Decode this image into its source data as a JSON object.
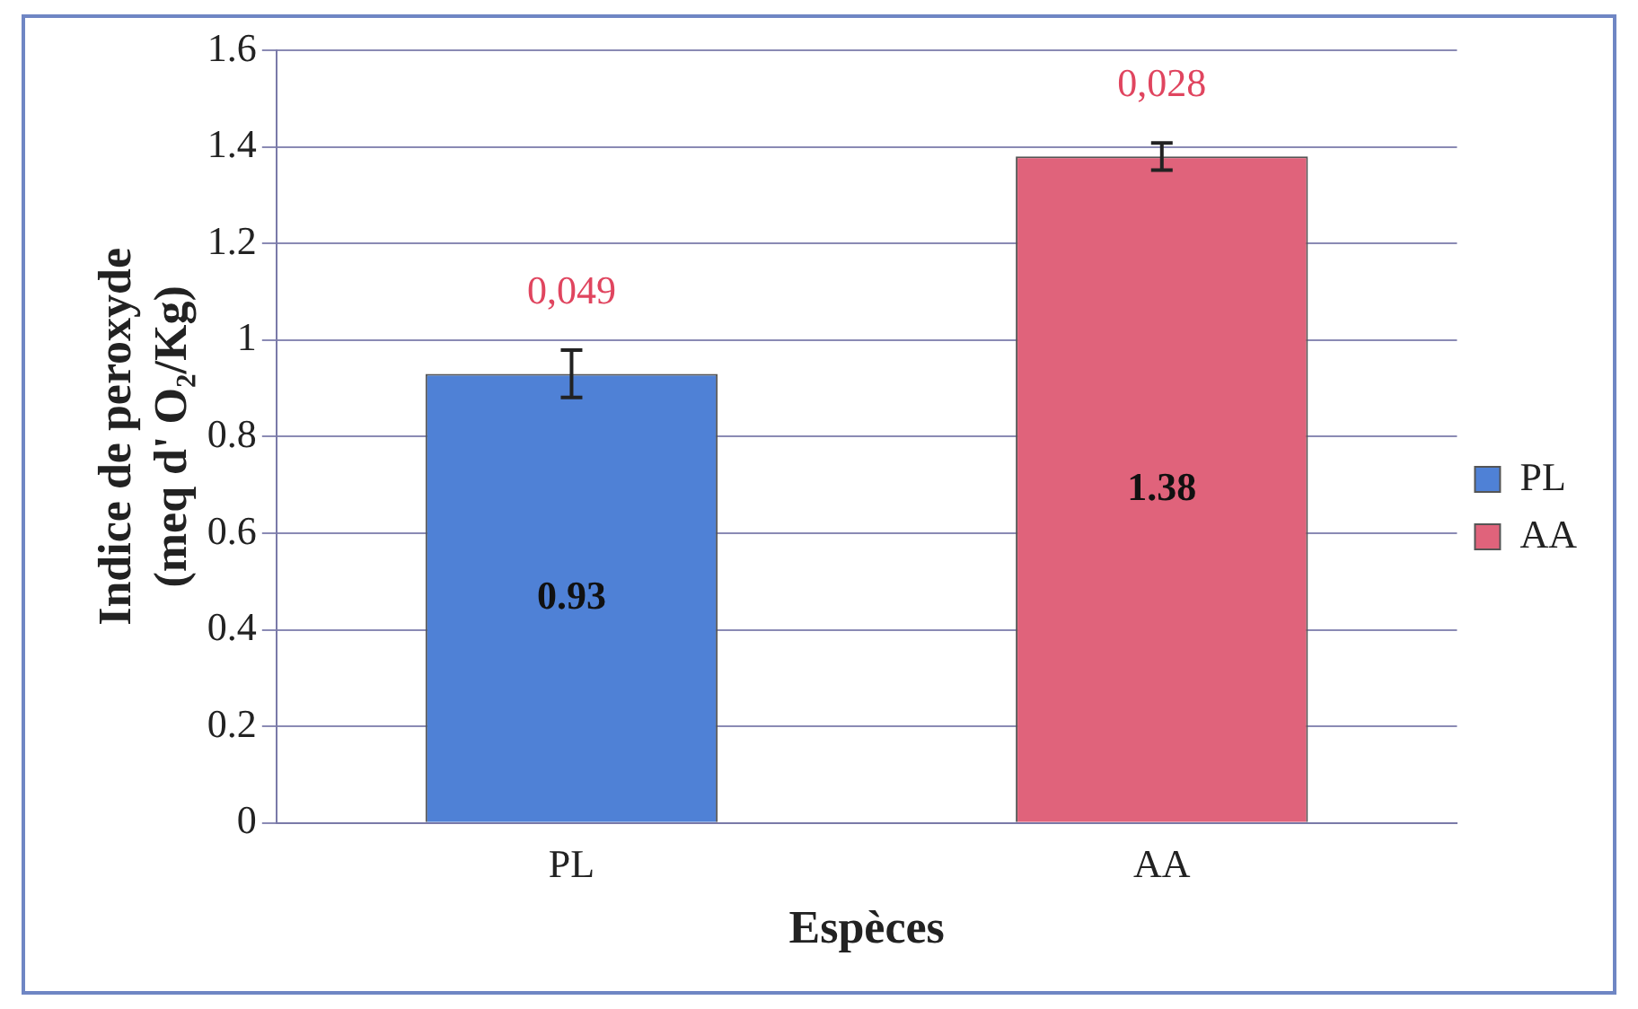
{
  "chart_data": {
    "type": "bar",
    "xlabel": "Espèces",
    "ylabel": "Indice de peroxyde\n(meq d' O₂/Kg)",
    "categories": [
      "PL",
      "AA"
    ],
    "stacked": true,
    "series": [
      {
        "name": "PL",
        "color": "#4f81d6",
        "values": [
          0.93,
          null
        ],
        "errors": [
          0.049,
          null
        ]
      },
      {
        "name": "AA",
        "color": "#e0637b",
        "values": [
          null,
          1.38
        ],
        "errors": [
          null,
          0.028
        ]
      }
    ],
    "ylim": [
      0,
      1.6
    ],
    "yticks": [
      0,
      0.2,
      0.4,
      0.6,
      0.8,
      1,
      1.2,
      1.4,
      1.6
    ],
    "grid": "y",
    "legend": "right",
    "data_labels": true,
    "annotations": [
      "0,049",
      "0,028"
    ]
  }
}
